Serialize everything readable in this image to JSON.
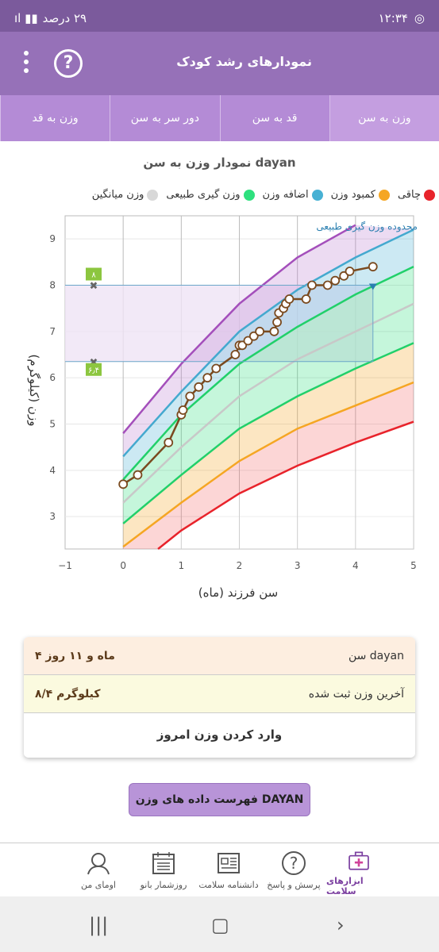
{
  "status": {
    "time": "۱۲:۳۴",
    "battery": "۲۹ درصد"
  },
  "appbar": {
    "title": "نمودارهای رشد کودک",
    "help_glyph": "?"
  },
  "tabs": [
    {
      "label": "وزن به سن",
      "active": true
    },
    {
      "label": "قد به سن",
      "active": false
    },
    {
      "label": "دور سر به سن",
      "active": false
    },
    {
      "label": "وزن به قد",
      "active": false
    }
  ],
  "chart": {
    "title": "نمودار وزن به سن dayan"
  },
  "legend": [
    {
      "label": "چاقی",
      "color": "#e8232b"
    },
    {
      "label": "کمبود وزن",
      "color": "#f5a623"
    },
    {
      "label": "اضافه وزن",
      "color": "#47b1d4"
    },
    {
      "label": "وزن گیری طبیعی",
      "color": "#2ee07e"
    },
    {
      "label": "وزن میانگین",
      "color": "#d8d8d8"
    }
  ],
  "chart_data": {
    "type": "line",
    "ylabel": "وزن (کیلوگرم)",
    "xlabel": "سن فرزند (ماه)",
    "range_label": "محدوده وزن گیری طبیعی",
    "xlim": [
      -1,
      5
    ],
    "ylim": [
      2.3,
      9.5
    ],
    "x_ticks": [
      "−1",
      "0",
      "1",
      "2",
      "3",
      "4",
      "5"
    ],
    "y_ticks": [
      "3",
      "4",
      "5",
      "6",
      "7",
      "8",
      "9"
    ],
    "range_markers": [
      {
        "label": "۸",
        "value": 8.0
      },
      {
        "label": "۶٫۴",
        "value": 6.35
      }
    ],
    "curves": [
      {
        "name": "purple",
        "color": "#a44fbb",
        "points": [
          [
            0,
            4.8
          ],
          [
            1,
            6.3
          ],
          [
            2,
            7.6
          ],
          [
            3,
            8.6
          ],
          [
            4,
            9.3
          ]
        ]
      },
      {
        "name": "blue",
        "color": "#44a9cf",
        "points": [
          [
            0,
            4.3
          ],
          [
            1,
            5.7
          ],
          [
            2,
            7.0
          ],
          [
            3,
            7.9
          ],
          [
            4,
            8.6
          ],
          [
            5,
            9.2
          ]
        ]
      },
      {
        "name": "green_upper",
        "color": "#21d06a",
        "points": [
          [
            0,
            3.8
          ],
          [
            1,
            5.2
          ],
          [
            2,
            6.3
          ],
          [
            3,
            7.1
          ],
          [
            4,
            7.8
          ],
          [
            5,
            8.4
          ]
        ]
      },
      {
        "name": "median",
        "color": "#c8c8c8",
        "points": [
          [
            0,
            3.3
          ],
          [
            1,
            4.5
          ],
          [
            2,
            5.6
          ],
          [
            3,
            6.4
          ],
          [
            4,
            7.0
          ],
          [
            5,
            7.6
          ]
        ]
      },
      {
        "name": "green_lower",
        "color": "#21d06a",
        "points": [
          [
            0,
            2.85
          ],
          [
            1,
            3.9
          ],
          [
            2,
            4.9
          ],
          [
            3,
            5.6
          ],
          [
            4,
            6.2
          ],
          [
            5,
            6.75
          ]
        ]
      },
      {
        "name": "orange",
        "color": "#f5a623",
        "points": [
          [
            0,
            2.35
          ],
          [
            1,
            3.3
          ],
          [
            2,
            4.2
          ],
          [
            3,
            4.9
          ],
          [
            4,
            5.4
          ],
          [
            5,
            5.9
          ]
        ]
      },
      {
        "name": "red",
        "color": "#e8232b",
        "points": [
          [
            0.6,
            2.3
          ],
          [
            1,
            2.7
          ],
          [
            2,
            3.5
          ],
          [
            3,
            4.1
          ],
          [
            4,
            4.6
          ],
          [
            5,
            5.05
          ]
        ]
      }
    ],
    "child_series": {
      "name": "dayan",
      "color": "#7a4a1f",
      "points": [
        [
          0,
          3.7
        ],
        [
          0.25,
          3.9
        ],
        [
          0.78,
          4.6
        ],
        [
          1.0,
          5.2
        ],
        [
          1.03,
          5.3
        ],
        [
          1.15,
          5.6
        ],
        [
          1.3,
          5.8
        ],
        [
          1.45,
          6.0
        ],
        [
          1.6,
          6.2
        ],
        [
          1.93,
          6.5
        ],
        [
          2.0,
          6.7
        ],
        [
          2.05,
          6.7
        ],
        [
          2.15,
          6.8
        ],
        [
          2.25,
          6.9
        ],
        [
          2.35,
          7.0
        ],
        [
          2.6,
          7.0
        ],
        [
          2.65,
          7.2
        ],
        [
          2.68,
          7.4
        ],
        [
          2.76,
          7.5
        ],
        [
          2.8,
          7.6
        ],
        [
          2.86,
          7.7
        ],
        [
          3.15,
          7.7
        ],
        [
          3.25,
          8.0
        ],
        [
          3.52,
          8.0
        ],
        [
          3.65,
          8.1
        ],
        [
          3.8,
          8.2
        ],
        [
          3.9,
          8.3
        ],
        [
          4.3,
          8.4
        ]
      ]
    }
  },
  "info": {
    "age_label": "سن dayan",
    "age_value": "۴ ماه و ۱۱ روز",
    "weight_label": "آخرین وزن ثبت شده",
    "weight_value": "۸/۴ کیلوگرم",
    "enter_today": "وارد کردن وزن امروز"
  },
  "list_button": "فهرست داده های وزن DAYAN",
  "bottomnav": [
    {
      "label": "ابزارهای سلامت",
      "icon": "medkit-icon",
      "active": true
    },
    {
      "label": "پرسش و پاسخ",
      "icon": "question-icon",
      "active": false
    },
    {
      "label": "دانشنامه سلامت",
      "icon": "newspaper-icon",
      "active": false
    },
    {
      "label": "روزشمار بانو",
      "icon": "calendar-icon",
      "active": false
    },
    {
      "label": "اومای من",
      "icon": "profile-icon",
      "active": false
    }
  ]
}
